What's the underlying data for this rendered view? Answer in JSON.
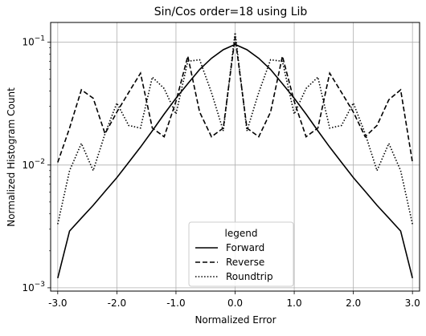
{
  "chart_data": {
    "type": "line",
    "title": "Sin/Cos order=18 using Lib",
    "xlabel": "Normalized Error",
    "ylabel": "Normalized Histogram Count",
    "xlim": [
      -3.12,
      3.12
    ],
    "ylim": [
      0.00094,
      0.145
    ],
    "yscale": "log",
    "grid": true,
    "x_ticks": [
      -3.0,
      -2.0,
      -1.0,
      0.0,
      1.0,
      2.0,
      3.0
    ],
    "x_tick_labels": [
      "-3.0",
      "-2.0",
      "-1.0",
      "0.0",
      "1.0",
      "2.0",
      "3.0"
    ],
    "y_ticks": [
      0.001,
      0.01,
      0.1
    ],
    "y_tick_labels": [
      {
        "base": "10",
        "exp": "−3"
      },
      {
        "base": "10",
        "exp": "−2"
      },
      {
        "base": "10",
        "exp": "−1"
      }
    ],
    "legend": {
      "title": "legend",
      "placement": "lower center"
    },
    "series": [
      {
        "name": "Forward",
        "dash": "solid",
        "color": "#000000",
        "x": [
          -3.0,
          -2.8,
          -2.6,
          -2.4,
          -2.2,
          -2.0,
          -1.8,
          -1.6,
          -1.4,
          -1.2,
          -1.0,
          -0.8,
          -0.6,
          -0.4,
          -0.2,
          0.0,
          0.2,
          0.4,
          0.6,
          0.8,
          1.0,
          1.2,
          1.4,
          1.6,
          1.8,
          2.0,
          2.2,
          2.4,
          2.6,
          2.8,
          3.0
        ],
        "y": [
          0.0012,
          0.0029,
          0.0037,
          0.0047,
          0.0061,
          0.0079,
          0.0105,
          0.014,
          0.019,
          0.026,
          0.035,
          0.046,
          0.06,
          0.074,
          0.087,
          0.096,
          0.087,
          0.074,
          0.06,
          0.046,
          0.035,
          0.026,
          0.019,
          0.014,
          0.0105,
          0.0079,
          0.0061,
          0.0047,
          0.0037,
          0.0029,
          0.0012
        ]
      },
      {
        "name": "Reverse",
        "dash": "dashed",
        "color": "#000000",
        "x": [
          -3.0,
          -2.8,
          -2.6,
          -2.4,
          -2.2,
          -2.0,
          -1.8,
          -1.6,
          -1.4,
          -1.2,
          -1.0,
          -0.8,
          -0.6,
          -0.4,
          -0.2,
          0.0,
          0.2,
          0.4,
          0.6,
          0.8,
          1.0,
          1.2,
          1.4,
          1.6,
          1.8,
          2.0,
          2.2,
          2.4,
          2.6,
          2.8,
          3.0
        ],
        "y": [
          0.0105,
          0.02,
          0.041,
          0.035,
          0.018,
          0.027,
          0.039,
          0.056,
          0.02,
          0.017,
          0.033,
          0.077,
          0.027,
          0.017,
          0.02,
          0.11,
          0.02,
          0.017,
          0.027,
          0.077,
          0.033,
          0.017,
          0.02,
          0.056,
          0.039,
          0.027,
          0.017,
          0.021,
          0.034,
          0.041,
          0.0105
        ]
      },
      {
        "name": "Roundtrip",
        "dash": "dotted",
        "color": "#000000",
        "x": [
          -3.0,
          -2.8,
          -2.6,
          -2.4,
          -2.2,
          -2.0,
          -1.8,
          -1.6,
          -1.4,
          -1.2,
          -1.0,
          -0.8,
          -0.6,
          -0.4,
          -0.2,
          0.0,
          0.2,
          0.4,
          0.6,
          0.8,
          1.0,
          1.2,
          1.4,
          1.6,
          1.8,
          2.0,
          2.2,
          2.4,
          2.6,
          2.8,
          3.0
        ],
        "y": [
          0.0033,
          0.009,
          0.015,
          0.009,
          0.018,
          0.032,
          0.021,
          0.02,
          0.052,
          0.042,
          0.026,
          0.07,
          0.072,
          0.039,
          0.019,
          0.12,
          0.019,
          0.039,
          0.072,
          0.07,
          0.026,
          0.042,
          0.052,
          0.02,
          0.021,
          0.032,
          0.018,
          0.009,
          0.015,
          0.009,
          0.0033
        ]
      }
    ]
  }
}
